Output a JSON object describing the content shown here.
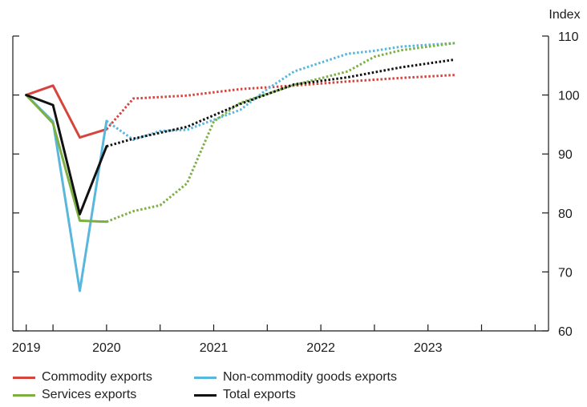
{
  "chart_data": {
    "type": "line",
    "ylabel": "Index",
    "ylim": [
      60,
      110
    ],
    "y_ticks": [
      60,
      70,
      80,
      90,
      100,
      110
    ],
    "x_range": [
      2018.875,
      2023.875
    ],
    "x_tick_labels": [
      {
        "label": "2019",
        "x": 2019.0
      },
      {
        "label": "2020",
        "x": 2019.75
      },
      {
        "label": "2021",
        "x": 2020.75
      },
      {
        "label": "2022",
        "x": 2021.75
      },
      {
        "label": "2023",
        "x": 2022.75
      }
    ],
    "x_minor_ticks": [
      2019.25,
      2020.25,
      2021.25,
      2022.25,
      2023.25,
      2023.75
    ],
    "grid": false,
    "legend_position": "bottom",
    "series": [
      {
        "name": "Commodity exports",
        "color": "#d6453d",
        "solid": [
          [
            2019.0,
            100.0
          ],
          [
            2019.25,
            101.6
          ],
          [
            2019.5,
            92.8
          ],
          [
            2019.75,
            94.2
          ]
        ],
        "dotted": [
          [
            2019.75,
            94.2
          ],
          [
            2020.0,
            99.4
          ],
          [
            2020.5,
            99.9
          ],
          [
            2021.0,
            101.0
          ],
          [
            2021.5,
            101.6
          ],
          [
            2022.0,
            102.3
          ],
          [
            2022.5,
            102.9
          ],
          [
            2023.0,
            103.4
          ]
        ]
      },
      {
        "name": "Non-commodity goods exports",
        "color": "#59b7dd",
        "solid": [
          [
            2019.0,
            100.0
          ],
          [
            2019.25,
            95.5
          ],
          [
            2019.5,
            66.8
          ],
          [
            2019.75,
            95.6
          ]
        ],
        "dotted": [
          [
            2019.75,
            95.6
          ],
          [
            2020.0,
            92.4
          ],
          [
            2020.25,
            93.9
          ],
          [
            2020.5,
            94.1
          ],
          [
            2021.0,
            97.5
          ],
          [
            2021.25,
            101.0
          ],
          [
            2021.5,
            104.0
          ],
          [
            2022.0,
            107.0
          ],
          [
            2022.25,
            107.5
          ],
          [
            2022.5,
            108.2
          ],
          [
            2023.0,
            108.8
          ]
        ]
      },
      {
        "name": "Services exports",
        "color": "#7cb042",
        "solid": [
          [
            2019.0,
            100.0
          ],
          [
            2019.25,
            95.2
          ],
          [
            2019.5,
            78.7
          ],
          [
            2019.75,
            78.5
          ]
        ],
        "dotted": [
          [
            2019.75,
            78.5
          ],
          [
            2020.0,
            80.3
          ],
          [
            2020.25,
            81.3
          ],
          [
            2020.5,
            85.0
          ],
          [
            2020.75,
            95.5
          ],
          [
            2021.0,
            98.7
          ],
          [
            2021.5,
            101.7
          ],
          [
            2022.0,
            104.0
          ],
          [
            2022.25,
            106.5
          ],
          [
            2022.5,
            107.6
          ],
          [
            2023.0,
            108.8
          ]
        ]
      },
      {
        "name": "Total exports",
        "color": "#111111",
        "solid": [
          [
            2019.0,
            100.0
          ],
          [
            2019.25,
            98.3
          ],
          [
            2019.5,
            79.8
          ],
          [
            2019.75,
            91.3
          ]
        ],
        "dotted": [
          [
            2019.75,
            91.3
          ],
          [
            2020.0,
            92.6
          ],
          [
            2020.5,
            94.6
          ],
          [
            2021.0,
            98.5
          ],
          [
            2021.5,
            101.8
          ],
          [
            2022.0,
            103.0
          ],
          [
            2022.5,
            104.7
          ],
          [
            2023.0,
            106.0
          ]
        ]
      }
    ]
  }
}
